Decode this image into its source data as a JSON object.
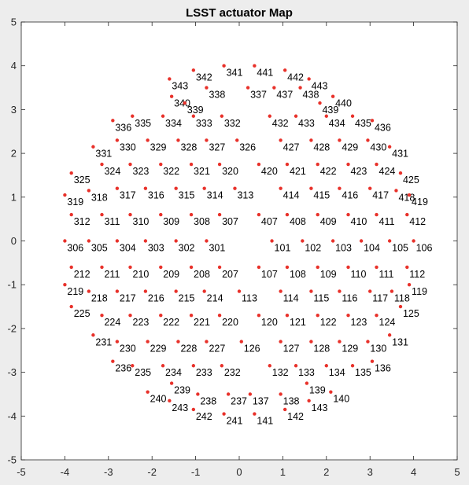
{
  "chart_data": {
    "type": "scatter",
    "title": "LSST actuator Map",
    "xlabel": "",
    "ylabel": "",
    "xlim": [
      -5,
      5
    ],
    "ylim": [
      -5,
      5
    ],
    "x_ticks": [
      -5,
      -4,
      -3,
      -2,
      -1,
      0,
      1,
      2,
      3,
      4,
      5
    ],
    "y_ticks": [
      -5,
      -4,
      -3,
      -2,
      -1,
      0,
      1,
      2,
      3,
      4,
      5
    ],
    "grid": false,
    "legend": "none",
    "marker_color": "#e8312a",
    "points": [
      {
        "label": "341",
        "x": -0.35,
        "y": 4.0
      },
      {
        "label": "441",
        "x": 0.35,
        "y": 4.0
      },
      {
        "label": "342",
        "x": -1.05,
        "y": 3.9
      },
      {
        "label": "442",
        "x": 1.05,
        "y": 3.9
      },
      {
        "label": "343",
        "x": -1.6,
        "y": 3.7
      },
      {
        "label": "443",
        "x": 1.6,
        "y": 3.7
      },
      {
        "label": "340",
        "x": -1.55,
        "y": 3.3
      },
      {
        "label": "440",
        "x": 2.15,
        "y": 3.3
      },
      {
        "label": "339",
        "x": -1.25,
        "y": 3.15
      },
      {
        "label": "439",
        "x": 1.85,
        "y": 3.15
      },
      {
        "label": "338",
        "x": -0.75,
        "y": 3.5
      },
      {
        "label": "337",
        "x": 0.2,
        "y": 3.5
      },
      {
        "label": "437",
        "x": 0.8,
        "y": 3.5
      },
      {
        "label": "438",
        "x": 1.4,
        "y": 3.5
      },
      {
        "label": "336",
        "x": -2.9,
        "y": 2.75
      },
      {
        "label": "335",
        "x": -2.45,
        "y": 2.85
      },
      {
        "label": "334",
        "x": -1.75,
        "y": 2.85
      },
      {
        "label": "333",
        "x": -1.05,
        "y": 2.85
      },
      {
        "label": "332",
        "x": -0.4,
        "y": 2.85
      },
      {
        "label": "432",
        "x": 0.7,
        "y": 2.85
      },
      {
        "label": "433",
        "x": 1.3,
        "y": 2.85
      },
      {
        "label": "434",
        "x": 2.0,
        "y": 2.85
      },
      {
        "label": "435",
        "x": 2.6,
        "y": 2.85
      },
      {
        "label": "436",
        "x": 3.05,
        "y": 2.75
      },
      {
        "label": "331",
        "x": -3.35,
        "y": 2.15
      },
      {
        "label": "330",
        "x": -2.8,
        "y": 2.3
      },
      {
        "label": "329",
        "x": -2.1,
        "y": 2.3
      },
      {
        "label": "328",
        "x": -1.4,
        "y": 2.3
      },
      {
        "label": "327",
        "x": -0.75,
        "y": 2.3
      },
      {
        "label": "326",
        "x": -0.05,
        "y": 2.3
      },
      {
        "label": "427",
        "x": 0.95,
        "y": 2.3
      },
      {
        "label": "428",
        "x": 1.65,
        "y": 2.3
      },
      {
        "label": "429",
        "x": 2.3,
        "y": 2.3
      },
      {
        "label": "430",
        "x": 2.95,
        "y": 2.3
      },
      {
        "label": "431",
        "x": 3.45,
        "y": 2.15
      },
      {
        "label": "325",
        "x": -3.85,
        "y": 1.55
      },
      {
        "label": "324",
        "x": -3.15,
        "y": 1.75
      },
      {
        "label": "323",
        "x": -2.5,
        "y": 1.75
      },
      {
        "label": "322",
        "x": -1.8,
        "y": 1.75
      },
      {
        "label": "321",
        "x": -1.1,
        "y": 1.75
      },
      {
        "label": "320",
        "x": -0.45,
        "y": 1.75
      },
      {
        "label": "420",
        "x": 0.45,
        "y": 1.75
      },
      {
        "label": "421",
        "x": 1.1,
        "y": 1.75
      },
      {
        "label": "422",
        "x": 1.8,
        "y": 1.75
      },
      {
        "label": "423",
        "x": 2.5,
        "y": 1.75
      },
      {
        "label": "424",
        "x": 3.15,
        "y": 1.75
      },
      {
        "label": "425",
        "x": 3.7,
        "y": 1.55
      },
      {
        "label": "319",
        "x": -4.0,
        "y": 1.05
      },
      {
        "label": "318",
        "x": -3.45,
        "y": 1.15
      },
      {
        "label": "317",
        "x": -2.8,
        "y": 1.2
      },
      {
        "label": "316",
        "x": -2.15,
        "y": 1.2
      },
      {
        "label": "315",
        "x": -1.45,
        "y": 1.2
      },
      {
        "label": "314",
        "x": -0.8,
        "y": 1.2
      },
      {
        "label": "313",
        "x": -0.1,
        "y": 1.2
      },
      {
        "label": "414",
        "x": 0.95,
        "y": 1.2
      },
      {
        "label": "415",
        "x": 1.65,
        "y": 1.2
      },
      {
        "label": "416",
        "x": 2.3,
        "y": 1.2
      },
      {
        "label": "417",
        "x": 3.0,
        "y": 1.2
      },
      {
        "label": "418",
        "x": 3.6,
        "y": 1.15
      },
      {
        "label": "419",
        "x": 3.9,
        "y": 1.05
      },
      {
        "label": "312",
        "x": -3.85,
        "y": 0.6
      },
      {
        "label": "311",
        "x": -3.15,
        "y": 0.6
      },
      {
        "label": "310",
        "x": -2.5,
        "y": 0.6
      },
      {
        "label": "309",
        "x": -1.8,
        "y": 0.6
      },
      {
        "label": "308",
        "x": -1.1,
        "y": 0.6
      },
      {
        "label": "307",
        "x": -0.45,
        "y": 0.6
      },
      {
        "label": "407",
        "x": 0.45,
        "y": 0.6
      },
      {
        "label": "408",
        "x": 1.1,
        "y": 0.6
      },
      {
        "label": "409",
        "x": 1.8,
        "y": 0.6
      },
      {
        "label": "410",
        "x": 2.5,
        "y": 0.6
      },
      {
        "label": "411",
        "x": 3.15,
        "y": 0.6
      },
      {
        "label": "412",
        "x": 3.85,
        "y": 0.6
      },
      {
        "label": "306",
        "x": -4.0,
        "y": 0.0
      },
      {
        "label": "305",
        "x": -3.45,
        "y": 0.0
      },
      {
        "label": "304",
        "x": -2.8,
        "y": 0.0
      },
      {
        "label": "303",
        "x": -2.15,
        "y": 0.0
      },
      {
        "label": "302",
        "x": -1.45,
        "y": 0.0
      },
      {
        "label": "301",
        "x": -0.75,
        "y": 0.0
      },
      {
        "label": "101",
        "x": 0.75,
        "y": 0.0
      },
      {
        "label": "102",
        "x": 1.45,
        "y": 0.0
      },
      {
        "label": "103",
        "x": 2.15,
        "y": 0.0
      },
      {
        "label": "104",
        "x": 2.8,
        "y": 0.0
      },
      {
        "label": "105",
        "x": 3.45,
        "y": 0.0
      },
      {
        "label": "106",
        "x": 4.0,
        "y": 0.0
      },
      {
        "label": "212",
        "x": -3.85,
        "y": -0.6
      },
      {
        "label": "211",
        "x": -3.15,
        "y": -0.6
      },
      {
        "label": "210",
        "x": -2.5,
        "y": -0.6
      },
      {
        "label": "209",
        "x": -1.8,
        "y": -0.6
      },
      {
        "label": "208",
        "x": -1.1,
        "y": -0.6
      },
      {
        "label": "207",
        "x": -0.45,
        "y": -0.6
      },
      {
        "label": "107",
        "x": 0.45,
        "y": -0.6
      },
      {
        "label": "108",
        "x": 1.1,
        "y": -0.6
      },
      {
        "label": "109",
        "x": 1.8,
        "y": -0.6
      },
      {
        "label": "110",
        "x": 2.5,
        "y": -0.6
      },
      {
        "label": "111",
        "x": 3.15,
        "y": -0.6
      },
      {
        "label": "112",
        "x": 3.85,
        "y": -0.6
      },
      {
        "label": "219",
        "x": -4.0,
        "y": -1.0
      },
      {
        "label": "218",
        "x": -3.45,
        "y": -1.15
      },
      {
        "label": "217",
        "x": -2.8,
        "y": -1.15
      },
      {
        "label": "216",
        "x": -2.15,
        "y": -1.15
      },
      {
        "label": "215",
        "x": -1.45,
        "y": -1.15
      },
      {
        "label": "214",
        "x": -0.8,
        "y": -1.15
      },
      {
        "label": "113",
        "x": 0.0,
        "y": -1.15
      },
      {
        "label": "114",
        "x": 0.95,
        "y": -1.15
      },
      {
        "label": "115",
        "x": 1.65,
        "y": -1.15
      },
      {
        "label": "116",
        "x": 2.3,
        "y": -1.15
      },
      {
        "label": "117",
        "x": 3.0,
        "y": -1.15
      },
      {
        "label": "118",
        "x": 3.5,
        "y": -1.15
      },
      {
        "label": "119",
        "x": 3.9,
        "y": -1.0
      },
      {
        "label": "225",
        "x": -3.85,
        "y": -1.5
      },
      {
        "label": "224",
        "x": -3.15,
        "y": -1.7
      },
      {
        "label": "223",
        "x": -2.5,
        "y": -1.7
      },
      {
        "label": "222",
        "x": -1.8,
        "y": -1.7
      },
      {
        "label": "221",
        "x": -1.1,
        "y": -1.7
      },
      {
        "label": "220",
        "x": -0.45,
        "y": -1.7
      },
      {
        "label": "120",
        "x": 0.45,
        "y": -1.7
      },
      {
        "label": "121",
        "x": 1.1,
        "y": -1.7
      },
      {
        "label": "122",
        "x": 1.8,
        "y": -1.7
      },
      {
        "label": "123",
        "x": 2.5,
        "y": -1.7
      },
      {
        "label": "124",
        "x": 3.15,
        "y": -1.7
      },
      {
        "label": "125",
        "x": 3.7,
        "y": -1.5
      },
      {
        "label": "231",
        "x": -3.35,
        "y": -2.15
      },
      {
        "label": "230",
        "x": -2.8,
        "y": -2.3
      },
      {
        "label": "229",
        "x": -2.1,
        "y": -2.3
      },
      {
        "label": "228",
        "x": -1.4,
        "y": -2.3
      },
      {
        "label": "227",
        "x": -0.75,
        "y": -2.3
      },
      {
        "label": "126",
        "x": 0.05,
        "y": -2.3
      },
      {
        "label": "127",
        "x": 0.95,
        "y": -2.3
      },
      {
        "label": "128",
        "x": 1.65,
        "y": -2.3
      },
      {
        "label": "129",
        "x": 2.3,
        "y": -2.3
      },
      {
        "label": "130",
        "x": 2.95,
        "y": -2.3
      },
      {
        "label": "131",
        "x": 3.45,
        "y": -2.15
      },
      {
        "label": "236",
        "x": -2.9,
        "y": -2.75
      },
      {
        "label": "235",
        "x": -2.45,
        "y": -2.85
      },
      {
        "label": "234",
        "x": -1.75,
        "y": -2.85
      },
      {
        "label": "233",
        "x": -1.05,
        "y": -2.85
      },
      {
        "label": "232",
        "x": -0.4,
        "y": -2.85
      },
      {
        "label": "132",
        "x": 0.7,
        "y": -2.85
      },
      {
        "label": "133",
        "x": 1.3,
        "y": -2.85
      },
      {
        "label": "134",
        "x": 2.0,
        "y": -2.85
      },
      {
        "label": "135",
        "x": 2.6,
        "y": -2.85
      },
      {
        "label": "136",
        "x": 3.05,
        "y": -2.75
      },
      {
        "label": "239",
        "x": -1.55,
        "y": -3.25
      },
      {
        "label": "139",
        "x": 1.55,
        "y": -3.25
      },
      {
        "label": "240",
        "x": -2.1,
        "y": -3.45
      },
      {
        "label": "140",
        "x": 2.1,
        "y": -3.45
      },
      {
        "label": "238",
        "x": -0.95,
        "y": -3.5
      },
      {
        "label": "237",
        "x": -0.25,
        "y": -3.5
      },
      {
        "label": "137",
        "x": 0.25,
        "y": -3.5
      },
      {
        "label": "138",
        "x": 0.95,
        "y": -3.5
      },
      {
        "label": "243",
        "x": -1.6,
        "y": -3.65
      },
      {
        "label": "143",
        "x": 1.6,
        "y": -3.65
      },
      {
        "label": "242",
        "x": -1.05,
        "y": -3.85
      },
      {
        "label": "142",
        "x": 1.05,
        "y": -3.85
      },
      {
        "label": "241",
        "x": -0.35,
        "y": -3.95
      },
      {
        "label": "141",
        "x": 0.35,
        "y": -3.95
      }
    ]
  }
}
